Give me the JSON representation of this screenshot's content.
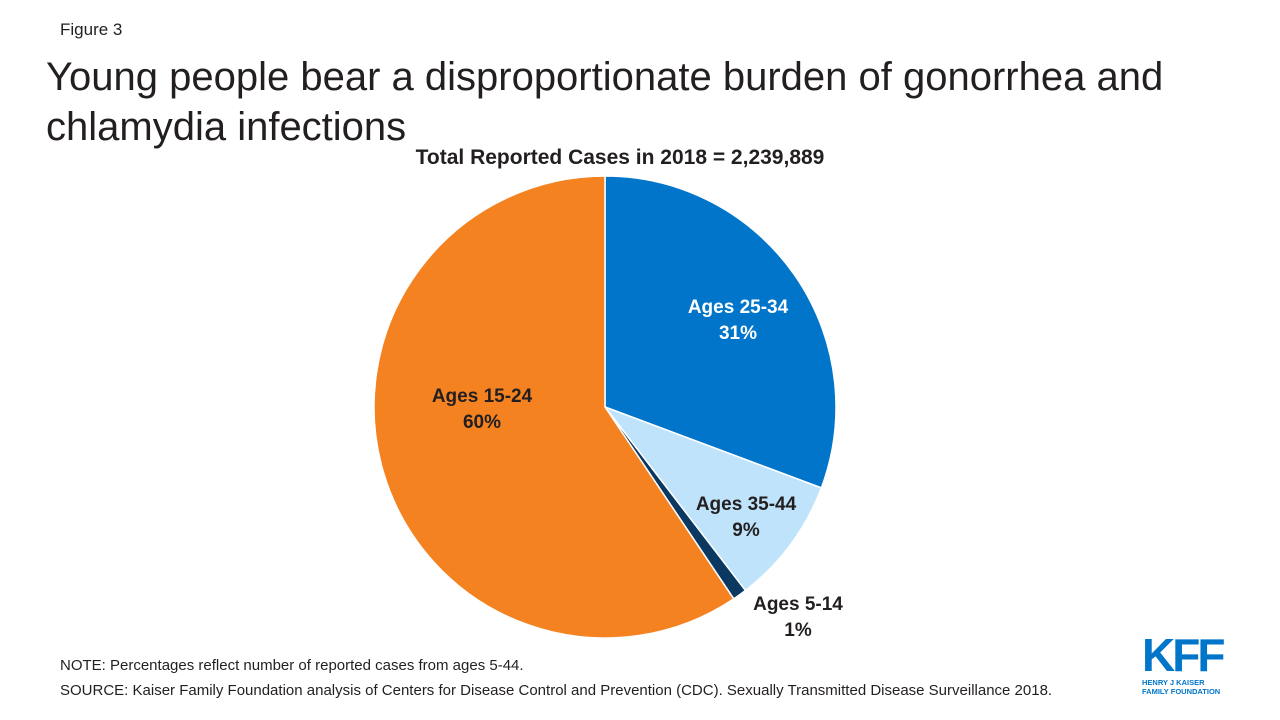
{
  "figure_label": "Figure 3",
  "title": "Young people bear a disproportionate burden of gonorrhea and chlamydia infections",
  "chart_data": {
    "type": "pie",
    "title": "Total Reported Cases in 2018 = 2,239,889",
    "slices": [
      {
        "label": "Ages 25-34",
        "value": 31,
        "value_label": "31%",
        "color": "#0075c9",
        "label_color": "#ffffff"
      },
      {
        "label": "Ages 35-44",
        "value": 9,
        "value_label": "9%",
        "color": "#bfe3fb",
        "label_color": "#231f20"
      },
      {
        "label": "Ages 5-14",
        "value": 1,
        "value_label": "1%",
        "color": "#0b3860",
        "label_color": "#231f20"
      },
      {
        "label": "Ages 15-24",
        "value": 60,
        "value_label": "60%",
        "color": "#f48220",
        "label_color": "#231f20"
      }
    ],
    "start": "12 o'clock",
    "direction": "clockwise"
  },
  "footnotes": {
    "note": "NOTE: Percentages reflect number of reported cases from ages 5-44.",
    "source": "SOURCE: Kaiser Family Foundation analysis of Centers for Disease Control and Prevention (CDC). Sexually Transmitted Disease Surveillance 2018."
  },
  "logo": {
    "mark": "KFF",
    "line1": "HENRY J KAISER",
    "line2": "FAMILY FOUNDATION"
  }
}
